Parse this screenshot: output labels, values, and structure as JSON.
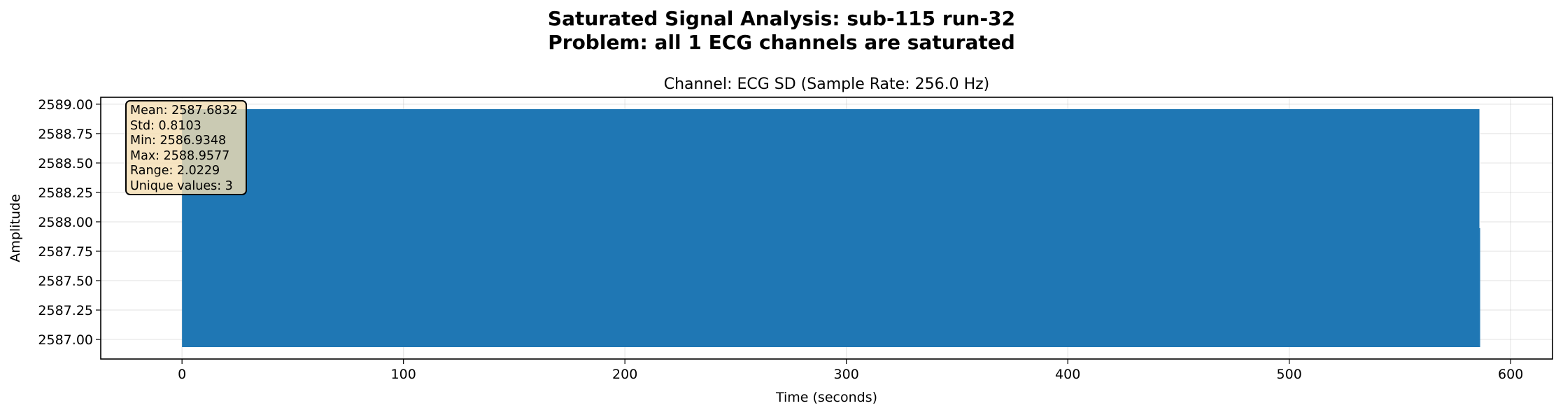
{
  "suptitle": {
    "line1": "Saturated Signal Analysis: sub-115 run-32",
    "line2": "Problem: all 1 ECG channels are saturated"
  },
  "chart_data": {
    "type": "line",
    "title": "Channel: ECG SD (Sample Rate: 256.0 Hz)",
    "xlabel": "Time (seconds)",
    "ylabel": "Amplitude",
    "xlim": [
      -36.7,
      618.9
    ],
    "ylim": [
      2586.8337,
      2589.0588
    ],
    "x_ticks": [
      0,
      100,
      200,
      300,
      400,
      500,
      600
    ],
    "x_tick_labels": [
      "0",
      "100",
      "200",
      "300",
      "400",
      "500",
      "600"
    ],
    "y_ticks": [
      2587.0,
      2587.25,
      2587.5,
      2587.75,
      2588.0,
      2588.25,
      2588.5,
      2588.75,
      2589.0
    ],
    "y_tick_labels": [
      "2587.00",
      "2587.25",
      "2587.50",
      "2587.75",
      "2588.00",
      "2588.25",
      "2588.50",
      "2588.75",
      "2589.00"
    ],
    "grid": true,
    "series": [
      {
        "color": "#1f77b4",
        "x_range": [
          0,
          586
        ],
        "y_min": 2586.9348,
        "y_max": 2588.9577,
        "unique_values": [
          2586.9348,
          2587.9463,
          2588.9577
        ],
        "tail": {
          "x": 585.9,
          "y_max": 2587.9463
        }
      }
    ],
    "stats": {
      "mean": "Mean: 2587.6832",
      "std": "Std: 0.8103",
      "min": "Min: 2586.9348",
      "max": "Max: 2588.9577",
      "range": "Range: 2.0229",
      "unique": "Unique values: 3"
    }
  }
}
